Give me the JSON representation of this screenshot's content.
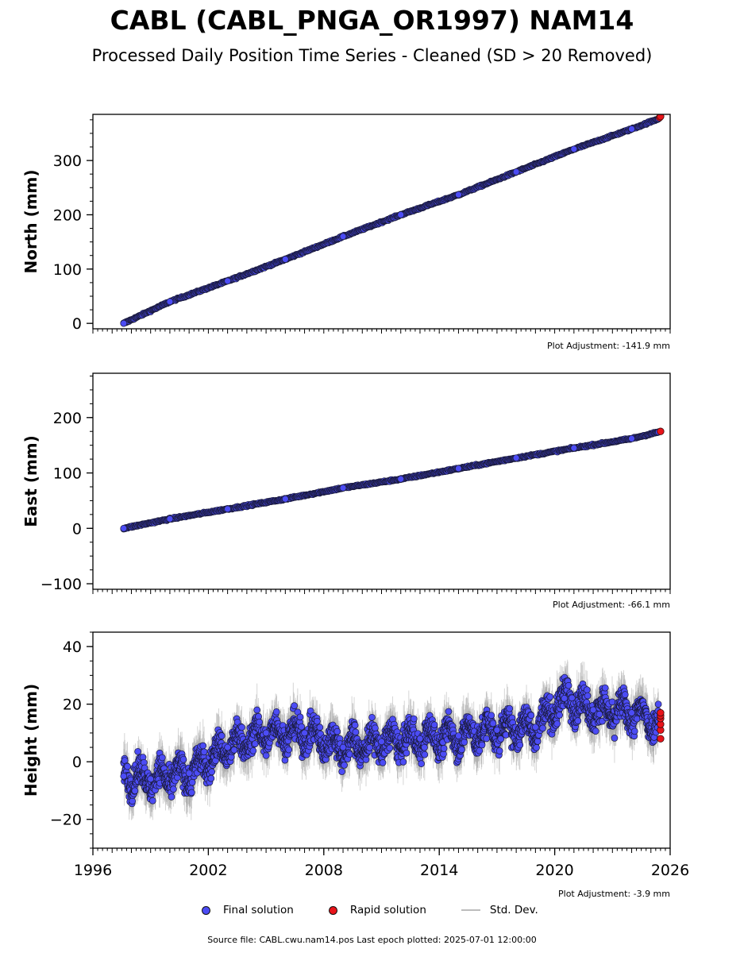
{
  "title": "CABL (CABL_PNGA_OR1997) NAM14",
  "subtitle": "Processed Daily Position Time Series - Cleaned (SD > 20 Removed)",
  "colors": {
    "final": "#4c4cf5",
    "rapid": "#e8141a",
    "stddev": "#bdbdbd"
  },
  "legend": {
    "final": "Final solution",
    "rapid": "Rapid solution",
    "stddev": "Std. Dev."
  },
  "footer": "Source file: CABL.cwu.nam14.pos  Last epoch plotted: 2025-07-01 12:00:00",
  "chart_data": [
    {
      "type": "scatter",
      "ylabel": "North (mm)",
      "adjustment": "Plot Adjustment: -141.9 mm",
      "xlim": [
        1996,
        2026
      ],
      "ylim": [
        -10,
        385
      ],
      "yticks": [
        0,
        100,
        200,
        300
      ],
      "ytick_labels": [
        "0",
        "100",
        "200",
        "300"
      ],
      "series": [
        {
          "name": "Final solution",
          "x": [
            1997.6,
            2000,
            2003,
            2006,
            2009,
            2012,
            2015,
            2018,
            2021,
            2024,
            2025.4
          ],
          "y": [
            0,
            40,
            78,
            118,
            160,
            200,
            237,
            279,
            321,
            358,
            377
          ]
        },
        {
          "name": "Rapid solution",
          "x": [
            2025.45,
            2025.5
          ],
          "y": [
            379,
            381
          ]
        }
      ]
    },
    {
      "type": "scatter",
      "ylabel": "East (mm)",
      "adjustment": "Plot Adjustment: -66.1 mm",
      "xlim": [
        1996,
        2026
      ],
      "ylim": [
        -110,
        280
      ],
      "yticks": [
        -100,
        0,
        100,
        200
      ],
      "ytick_labels": [
        "−100",
        "0",
        "100",
        "200"
      ],
      "series": [
        {
          "name": "Final solution",
          "x": [
            1997.6,
            2000,
            2003,
            2006,
            2009,
            2012,
            2015,
            2018,
            2021,
            2024,
            2025.4
          ],
          "y": [
            0,
            17,
            35,
            53,
            73,
            89,
            108,
            127,
            145,
            162,
            174
          ]
        },
        {
          "name": "Rapid solution",
          "x": [
            2025.5
          ],
          "y": [
            175
          ]
        }
      ]
    },
    {
      "type": "scatter",
      "ylabel": "Height (mm)",
      "adjustment": "Plot Adjustment: -3.9 mm",
      "xlabel": "",
      "xlim": [
        1996,
        2026
      ],
      "ylim": [
        -30,
        45
      ],
      "xticks": [
        1996,
        2002,
        2008,
        2014,
        2020,
        2026
      ],
      "xtick_labels": [
        "1996",
        "2002",
        "2008",
        "2014",
        "2020",
        "2026"
      ],
      "yticks": [
        -20,
        0,
        20,
        40
      ],
      "ytick_labels": [
        "−20",
        "0",
        "20",
        "40"
      ],
      "series": [
        {
          "name": "Final solution",
          "x": [
            1997.6,
            1999,
            2001,
            2003,
            2005,
            2007,
            2009,
            2011,
            2013,
            2015,
            2017,
            2019,
            2020.5,
            2022,
            2024,
            2025.4
          ],
          "y": [
            -5,
            -6,
            -4,
            5,
            10,
            10,
            5,
            7,
            8,
            9,
            11,
            12,
            22,
            18,
            17,
            14
          ]
        },
        {
          "name": "Rapid solution",
          "x": [
            2025.5,
            2025.5,
            2025.5,
            2025.5,
            2025.5,
            2025.5
          ],
          "y": [
            8,
            11,
            13,
            15,
            16,
            17
          ]
        }
      ]
    }
  ]
}
